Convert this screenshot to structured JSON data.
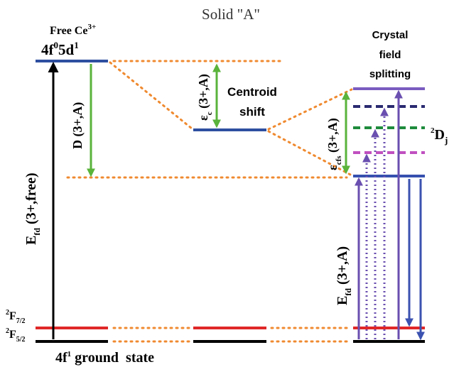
{
  "title": "Solid \"A\"",
  "free_ion": {
    "name": "Free Ce",
    "charge": "3+",
    "config": [
      "4f",
      "0",
      "5d",
      "1"
    ]
  },
  "redshift_label": "D (3+,A)",
  "efd_free": {
    "symbol": "E",
    "sub": "fd",
    "arg": " (3+,free)"
  },
  "centroid": {
    "symbol": "ε",
    "sub": "c",
    "arg": " (3+,A)",
    "text": [
      "Centroid",
      "shift"
    ]
  },
  "crystal_field": {
    "text": [
      "Crystal",
      "field",
      "splitting"
    ],
    "symbol": "ε",
    "sub": "cfs",
    "arg": " (3+,A)"
  },
  "d_term": {
    "sup": "2",
    "letter": "D",
    "sub": "j"
  },
  "efd_a": {
    "symbol": "E",
    "sub": "fd",
    "arg": " (3+,A)"
  },
  "f72": {
    "sup": "2",
    "letter": "F",
    "sub": "7/2"
  },
  "f52": {
    "sup": "2",
    "letter": "F",
    "sub": "5/2"
  },
  "ground": {
    "config": "4f",
    "sup": "1",
    "text": " ground  state"
  }
}
